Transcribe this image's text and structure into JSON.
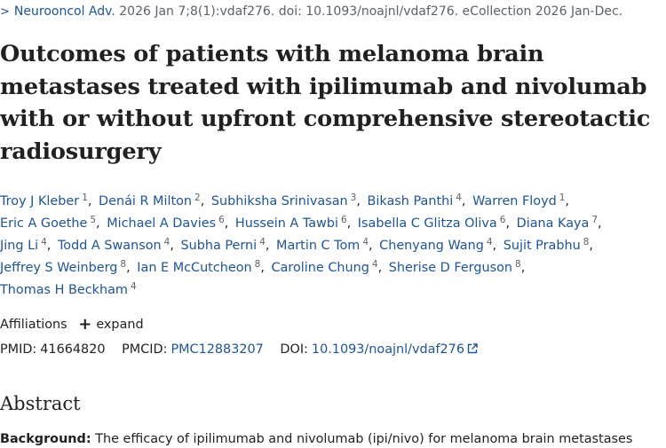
{
  "citation": {
    "journal": "Neurooncol Adv.",
    "details": "2026 Jan 7;8(1):vdaf276. doi: 10.1093/noajnl/vdaf276. eCollection 2026 Jan-Dec."
  },
  "title": "Outcomes of patients with melanoma brain metastases treated with ipilimumab and nivolumab with or without upfront comprehensive stereotactic radiosurgery",
  "authors": [
    {
      "name": "Troy J Kleber",
      "aff": "1"
    },
    {
      "name": "Denái R Milton",
      "aff": "2"
    },
    {
      "name": "Subhiksha Srinivasan",
      "aff": "3"
    },
    {
      "name": "Bikash Panthi",
      "aff": "4"
    },
    {
      "name": "Warren Floyd",
      "aff": "1"
    },
    {
      "name": "Eric A Goethe",
      "aff": "5"
    },
    {
      "name": "Michael A Davies",
      "aff": "6"
    },
    {
      "name": "Hussein A Tawbi",
      "aff": "6"
    },
    {
      "name": "Isabella C Glitza Oliva",
      "aff": "6"
    },
    {
      "name": "Diana Kaya",
      "aff": "7"
    },
    {
      "name": "Jing Li",
      "aff": "4"
    },
    {
      "name": "Todd A Swanson",
      "aff": "4"
    },
    {
      "name": "Subha Perni",
      "aff": "4"
    },
    {
      "name": "Martin C Tom",
      "aff": "4"
    },
    {
      "name": "Chenyang Wang",
      "aff": "4"
    },
    {
      "name": "Sujit Prabhu",
      "aff": "8"
    },
    {
      "name": "Jeffrey S Weinberg",
      "aff": "8"
    },
    {
      "name": "Ian E McCutcheon",
      "aff": "8"
    },
    {
      "name": "Caroline Chung",
      "aff": "4"
    },
    {
      "name": "Sherise D Ferguson",
      "aff": "8"
    },
    {
      "name": "Thomas H Beckham",
      "aff": "4"
    }
  ],
  "affiliations": {
    "label": "Affiliations",
    "toggle": "expand"
  },
  "ids": {
    "pmid_label": "PMID:",
    "pmid": "41664820",
    "pmcid_label": "PMCID:",
    "pmcid": "PMC12883207",
    "doi_label": "DOI:",
    "doi": "10.1093/noajnl/vdaf276"
  },
  "abstract": {
    "heading": "Abstract",
    "lead_label": "Background:",
    "lead_text": "The efficacy of ipilimumab and nivolumab (ipi/nivo) for melanoma brain metastases"
  }
}
